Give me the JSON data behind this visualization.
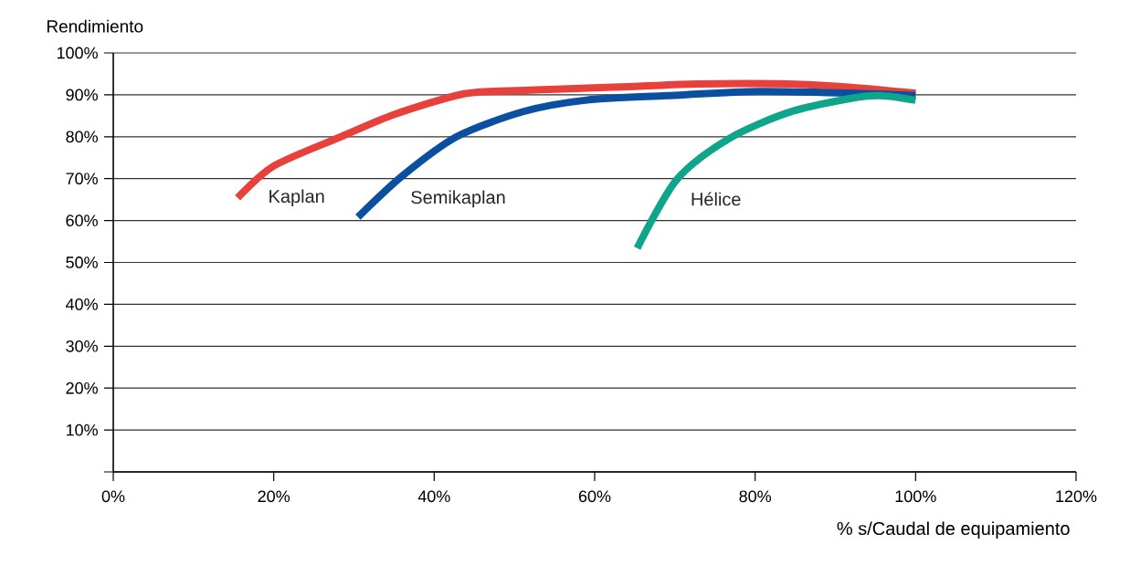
{
  "chart_data": {
    "type": "line",
    "xlabel": "% s/Caudal de equipamiento",
    "ylabel": "Rendimiento",
    "xlim": [
      0,
      120
    ],
    "ylim": [
      0,
      100
    ],
    "xticks": [
      {
        "value": 0,
        "label": "0%"
      },
      {
        "value": 20,
        "label": "20%"
      },
      {
        "value": 40,
        "label": "40%"
      },
      {
        "value": 60,
        "label": "60%"
      },
      {
        "value": 80,
        "label": "80%"
      },
      {
        "value": 100,
        "label": "100%"
      },
      {
        "value": 120,
        "label": "120%"
      }
    ],
    "yticks": [
      {
        "value": 0,
        "label": null
      },
      {
        "value": 10,
        "label": "10%"
      },
      {
        "value": 20,
        "label": "20%"
      },
      {
        "value": 30,
        "label": "30%"
      },
      {
        "value": 40,
        "label": "40%"
      },
      {
        "value": 50,
        "label": "50%"
      },
      {
        "value": 60,
        "label": "60%"
      },
      {
        "value": 70,
        "label": "70%"
      },
      {
        "value": 80,
        "label": "80%"
      },
      {
        "value": 90,
        "label": "90%"
      },
      {
        "value": 100,
        "label": "100%"
      }
    ],
    "grid": "y",
    "legend": false,
    "marker": "none",
    "line_style": "solid",
    "series": [
      {
        "name": "Kaplan",
        "color": "#e8403a",
        "x": [
          15.5,
          20,
          28.4,
          35,
          43.6,
          50,
          57.6,
          65,
          72.8,
          84.2,
          92,
          100
        ],
        "values": [
          65.4,
          73,
          80,
          85.3,
          90.2,
          91,
          91.5,
          92,
          92.6,
          92.6,
          91.8,
          90.4
        ]
      },
      {
        "name": "Semikaplan",
        "color": "#0a4fa0",
        "x": [
          30.5,
          36,
          42.8,
          51.1,
          58.8,
          69,
          80.4,
          91.8,
          100
        ],
        "values": [
          60.8,
          70.6,
          80,
          86,
          88.7,
          89.8,
          90.8,
          90.4,
          89.8
        ]
      },
      {
        "name": "Hélice",
        "color": "#0fa58a",
        "x": [
          65.3,
          70.2,
          76.7,
          84.2,
          91.8,
          95.6,
          100
        ],
        "values": [
          53.4,
          69.7,
          79.5,
          85.8,
          89.1,
          89.8,
          88.7
        ]
      }
    ]
  }
}
